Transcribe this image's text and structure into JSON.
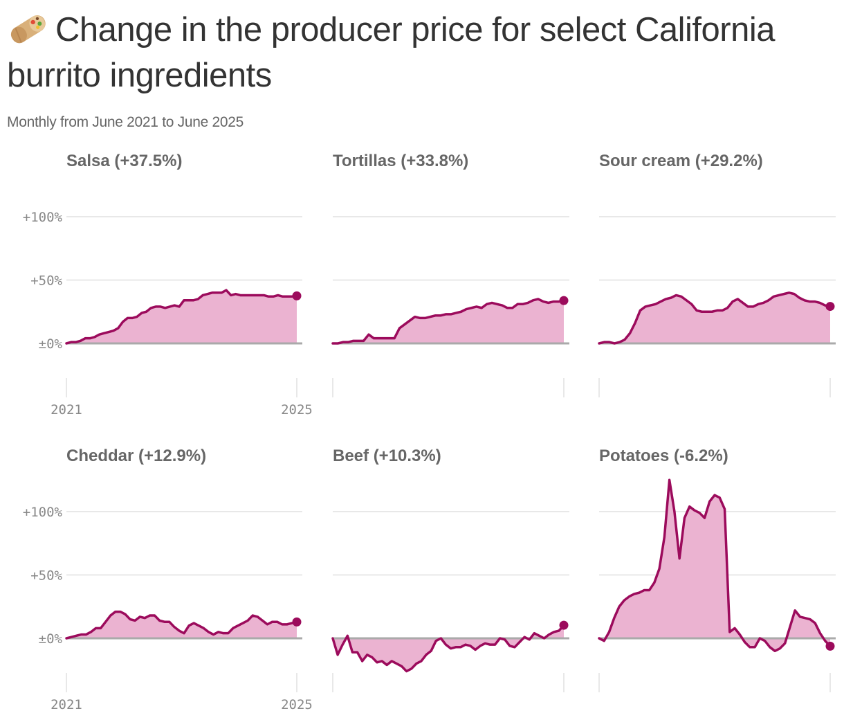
{
  "title": "Change in the producer price for select California burrito ingredients",
  "subtitle": "Monthly from June 2021 to June 2025",
  "icon": "burrito-icon",
  "colors": {
    "line": "#9c0b5c",
    "area": "#ebb3d1",
    "zero_line": "#aaaaaa",
    "grid": "#e0e0e0",
    "title_text": "#333333",
    "label_text": "#666666",
    "tick_text": "#888888"
  },
  "chart_data": [
    {
      "type": "area",
      "title": "Salsa (+37.5%)",
      "x_start": "2021-06",
      "x_end": "2025-06",
      "x_ticks": [
        "2021",
        "2025"
      ],
      "y_ticks": [
        "±0%",
        "+50%",
        "+100%"
      ],
      "ylim": [
        -30,
        125
      ],
      "grid": true,
      "end_marker": true,
      "values": [
        0,
        1,
        1,
        2,
        4,
        4,
        5,
        7,
        8,
        9,
        10,
        12,
        17,
        20,
        20,
        21,
        24,
        25,
        28,
        29,
        29,
        28,
        29,
        30,
        29,
        34,
        34,
        34,
        35,
        38,
        39,
        40,
        40,
        40,
        42,
        38,
        39,
        38,
        38,
        38,
        38,
        38,
        38,
        37,
        37,
        38,
        37,
        37,
        37,
        37.5
      ]
    },
    {
      "type": "area",
      "title": "Tortillas (+33.8%)",
      "x_start": "2021-06",
      "x_end": "2025-06",
      "y_ticks": [
        "±0%",
        "+50%",
        "+100%"
      ],
      "ylim": [
        -30,
        125
      ],
      "grid": true,
      "end_marker": true,
      "values": [
        0,
        0,
        1,
        1,
        2,
        2,
        2,
        7,
        4,
        4,
        4,
        4,
        4,
        12,
        15,
        18,
        21,
        20,
        20,
        21,
        22,
        22,
        23,
        23,
        24,
        25,
        27,
        28,
        29,
        28,
        31,
        32,
        31,
        30,
        28,
        28,
        31,
        31,
        32,
        34,
        35,
        33,
        32,
        33,
        33,
        33.8
      ]
    },
    {
      "type": "area",
      "title": "Sour cream (+29.2%)",
      "x_start": "2021-06",
      "x_end": "2025-06",
      "y_ticks": [
        "±0%",
        "+50%",
        "+100%"
      ],
      "ylim": [
        -30,
        125
      ],
      "grid": true,
      "end_marker": true,
      "values": [
        0,
        1,
        1,
        0,
        1,
        3,
        8,
        16,
        26,
        29,
        30,
        31,
        33,
        35,
        36,
        38,
        37,
        34,
        31,
        26,
        25,
        25,
        25,
        26,
        26,
        28,
        33,
        35,
        32,
        29,
        29,
        31,
        32,
        34,
        37,
        38,
        39,
        40,
        39,
        36,
        34,
        33,
        33,
        32,
        30,
        29.2
      ]
    },
    {
      "type": "area",
      "title": "Cheddar (+12.9%)",
      "x_start": "2021-06",
      "x_end": "2025-06",
      "x_ticks": [
        "2021",
        "2025"
      ],
      "y_ticks": [
        "±0%",
        "+50%",
        "+100%"
      ],
      "ylim": [
        -30,
        125
      ],
      "grid": true,
      "end_marker": true,
      "values": [
        0,
        1,
        2,
        3,
        3,
        5,
        8,
        8,
        13,
        18,
        21,
        21,
        19,
        15,
        14,
        17,
        16,
        18,
        18,
        14,
        13,
        13,
        9,
        6,
        4,
        10,
        12,
        10,
        8,
        5,
        3,
        5,
        4,
        4,
        8,
        10,
        12,
        14,
        18,
        17,
        14,
        11,
        13,
        13,
        11,
        11,
        12,
        12.9
      ]
    },
    {
      "type": "area",
      "title": "Beef (+10.3%)",
      "x_start": "2021-06",
      "x_end": "2025-06",
      "y_ticks": [
        "±0%",
        "+50%",
        "+100%"
      ],
      "ylim": [
        -30,
        125
      ],
      "grid": true,
      "end_marker": true,
      "values": [
        0,
        -13,
        -5,
        2,
        -11,
        -11,
        -18,
        -13,
        -15,
        -19,
        -18,
        -21,
        -18,
        -20,
        -22,
        -26,
        -24,
        -20,
        -18,
        -13,
        -10,
        -2,
        0,
        -5,
        -8,
        -7,
        -7,
        -5,
        -6,
        -9,
        -6,
        -4,
        -5,
        -5,
        0,
        -1,
        -6,
        -7,
        -3,
        1,
        -1,
        4,
        2,
        0,
        3,
        5,
        6,
        10.3
      ]
    },
    {
      "type": "area",
      "title": "Potatoes (-6.2%)",
      "x_start": "2021-06",
      "x_end": "2025-06",
      "y_ticks": [
        "±0%",
        "+50%",
        "+100%"
      ],
      "ylim": [
        -30,
        125
      ],
      "grid": true,
      "end_marker": true,
      "values": [
        0,
        -2,
        5,
        16,
        25,
        30,
        33,
        35,
        36,
        38,
        38,
        44,
        55,
        80,
        125,
        100,
        63,
        95,
        104,
        101,
        99,
        95,
        108,
        113,
        111,
        102,
        5,
        8,
        3,
        -3,
        -7,
        -7,
        0,
        -2,
        -7,
        -10,
        -8,
        -4,
        9,
        22,
        17,
        16,
        15,
        12,
        4,
        -2,
        -6.2
      ]
    }
  ]
}
